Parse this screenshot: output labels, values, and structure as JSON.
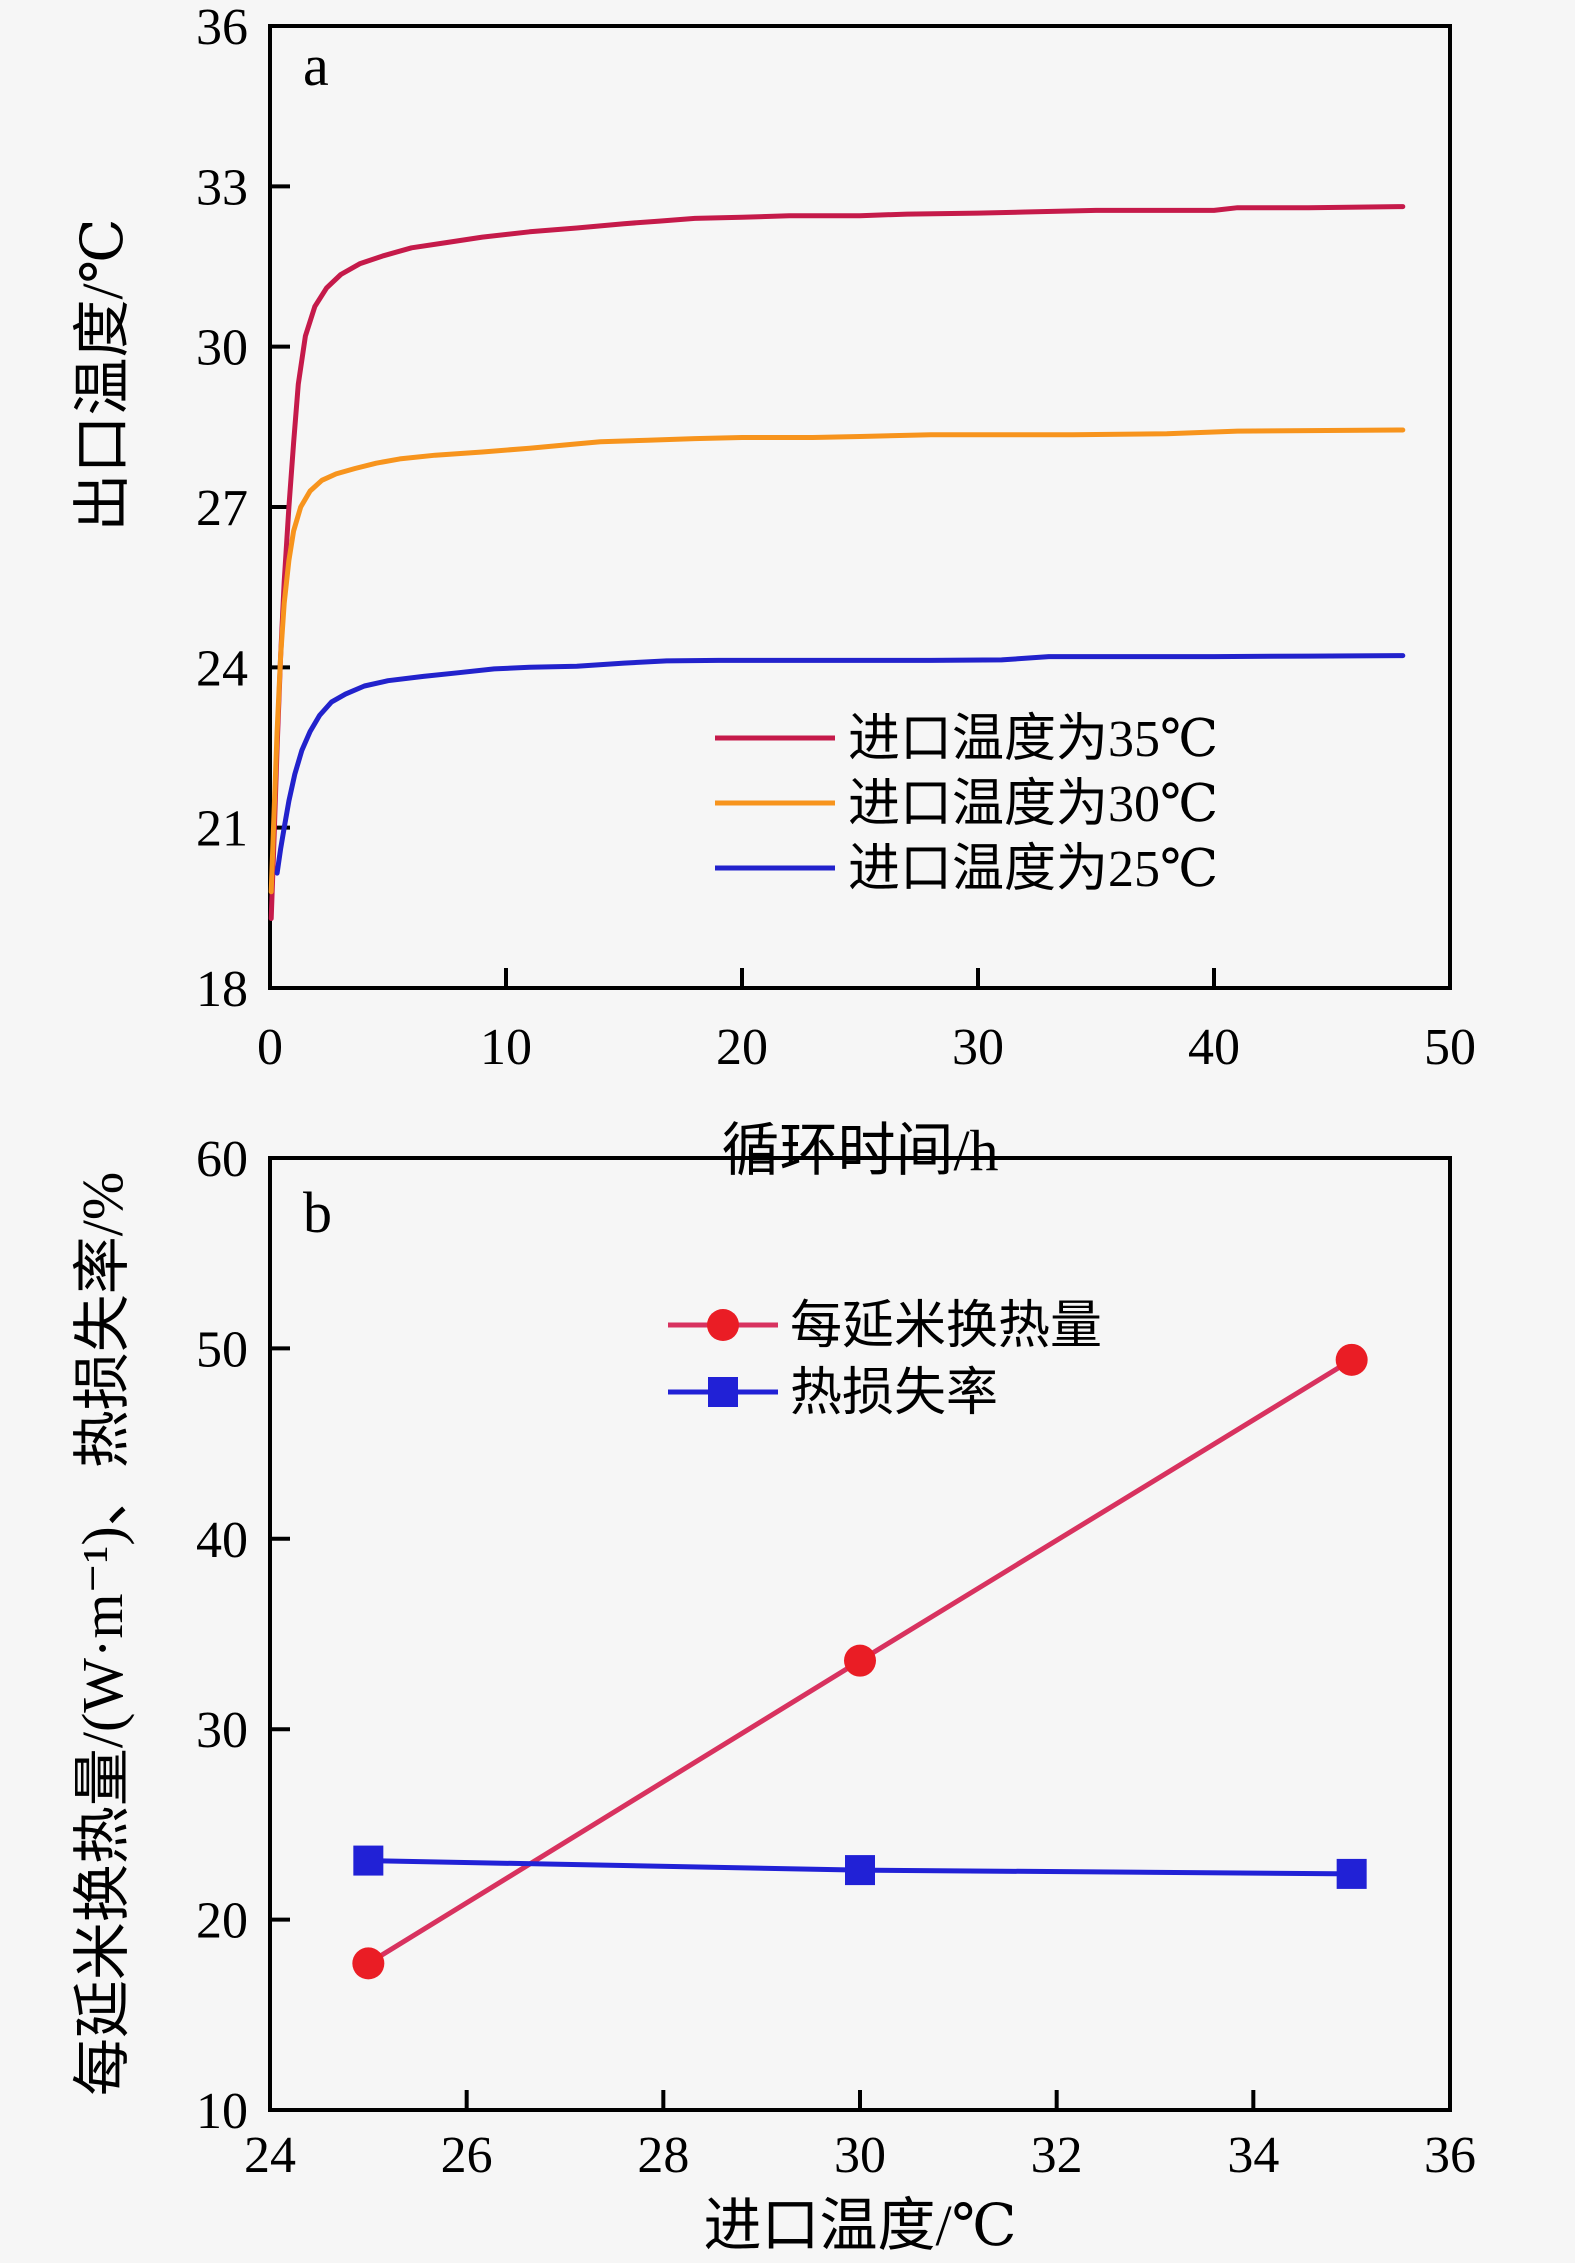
{
  "figure": {
    "background": "#f6f6f6",
    "frame_color": "#000000",
    "panels": [
      "a",
      "b"
    ]
  },
  "chart_data": [
    {
      "id": "a",
      "type": "line",
      "panel_label": "a",
      "xlabel": "循环时间/h",
      "ylabel": "出口温度/℃",
      "xlim": [
        0,
        50
      ],
      "ylim": [
        18,
        36
      ],
      "xticks": [
        0,
        10,
        20,
        30,
        40,
        50
      ],
      "yticks": [
        18,
        21,
        24,
        27,
        30,
        33,
        36
      ],
      "grid": false,
      "legend_position": "inside-right-middle",
      "series": [
        {
          "name": "进口温度为35℃",
          "line_color": "#c51a4a",
          "marker": "none",
          "points": [
            [
              0.05,
              19.3
            ],
            [
              0.15,
              20.5
            ],
            [
              0.3,
              22.5
            ],
            [
              0.45,
              24.2
            ],
            [
              0.6,
              25.6
            ],
            [
              0.8,
              27.0
            ],
            [
              1.0,
              28.2
            ],
            [
              1.2,
              29.3
            ],
            [
              1.5,
              30.2
            ],
            [
              1.9,
              30.75
            ],
            [
              2.4,
              31.1
            ],
            [
              3.0,
              31.35
            ],
            [
              3.8,
              31.55
            ],
            [
              4.8,
              31.7
            ],
            [
              6.0,
              31.85
            ],
            [
              7.5,
              31.95
            ],
            [
              9.0,
              32.05
            ],
            [
              11,
              32.15
            ],
            [
              13,
              32.22
            ],
            [
              15,
              32.3
            ],
            [
              16.5,
              32.35
            ],
            [
              18,
              32.4
            ],
            [
              20,
              32.42
            ],
            [
              22,
              32.45
            ],
            [
              25,
              32.45
            ],
            [
              27,
              32.48
            ],
            [
              30,
              32.5
            ],
            [
              32,
              32.52
            ],
            [
              35,
              32.55
            ],
            [
              38,
              32.55
            ],
            [
              40,
              32.55
            ],
            [
              41,
              32.6
            ],
            [
              44,
              32.6
            ],
            [
              48,
              32.62
            ]
          ]
        },
        {
          "name": "进口温度为30℃",
          "line_color": "#f7941d",
          "marker": "none",
          "points": [
            [
              0.05,
              19.8
            ],
            [
              0.15,
              21.0
            ],
            [
              0.3,
              22.8
            ],
            [
              0.45,
              24.2
            ],
            [
              0.6,
              25.2
            ],
            [
              0.8,
              26.0
            ],
            [
              1.0,
              26.55
            ],
            [
              1.3,
              27.0
            ],
            [
              1.7,
              27.3
            ],
            [
              2.2,
              27.5
            ],
            [
              2.8,
              27.62
            ],
            [
              3.6,
              27.72
            ],
            [
              4.5,
              27.82
            ],
            [
              5.5,
              27.9
            ],
            [
              7,
              27.97
            ],
            [
              9,
              28.03
            ],
            [
              11,
              28.1
            ],
            [
              13,
              28.18
            ],
            [
              14,
              28.22
            ],
            [
              16,
              28.25
            ],
            [
              18,
              28.28
            ],
            [
              20,
              28.3
            ],
            [
              23,
              28.3
            ],
            [
              25,
              28.32
            ],
            [
              28,
              28.35
            ],
            [
              31,
              28.35
            ],
            [
              34,
              28.35
            ],
            [
              38,
              28.37
            ],
            [
              41,
              28.42
            ],
            [
              44,
              28.43
            ],
            [
              48,
              28.44
            ]
          ]
        },
        {
          "name": "进口温度为25℃",
          "line_color": "#2222cc",
          "marker": "none",
          "points": [
            [
              0.3,
              20.15
            ],
            [
              0.45,
              20.6
            ],
            [
              0.6,
              21.0
            ],
            [
              0.8,
              21.5
            ],
            [
              1.05,
              22.0
            ],
            [
              1.35,
              22.45
            ],
            [
              1.7,
              22.8
            ],
            [
              2.1,
              23.1
            ],
            [
              2.6,
              23.35
            ],
            [
              3.2,
              23.5
            ],
            [
              4.0,
              23.65
            ],
            [
              5.0,
              23.75
            ],
            [
              6.5,
              23.83
            ],
            [
              8,
              23.9
            ],
            [
              9.5,
              23.97
            ],
            [
              11,
              24.0
            ],
            [
              13,
              24.02
            ],
            [
              15,
              24.08
            ],
            [
              16.8,
              24.12
            ],
            [
              19,
              24.13
            ],
            [
              22,
              24.13
            ],
            [
              25,
              24.13
            ],
            [
              28,
              24.13
            ],
            [
              31,
              24.14
            ],
            [
              33,
              24.2
            ],
            [
              36,
              24.2
            ],
            [
              40,
              24.2
            ],
            [
              44,
              24.21
            ],
            [
              48,
              24.22
            ]
          ]
        }
      ]
    },
    {
      "id": "b",
      "type": "line",
      "panel_label": "b",
      "xlabel": "进口温度/℃",
      "ylabel": "每延米换热量/(W·m⁻¹)、热损失率/%",
      "xlim": [
        24,
        36
      ],
      "ylim": [
        10,
        60
      ],
      "xticks": [
        24,
        26,
        28,
        30,
        32,
        34,
        36
      ],
      "yticks": [
        10,
        20,
        30,
        40,
        50,
        60
      ],
      "grid": false,
      "legend_position": "inside-top-center",
      "series": [
        {
          "name": "每延米换热量",
          "line_color": "#d8325f",
          "marker": "circle",
          "marker_color": "#ea1d25",
          "points": [
            [
              25,
              17.7
            ],
            [
              30,
              33.6
            ],
            [
              35,
              49.4
            ]
          ]
        },
        {
          "name": "热损失率",
          "line_color": "#2121d6",
          "marker": "square",
          "marker_color": "#2121d6",
          "points": [
            [
              25,
              23.1
            ],
            [
              30,
              22.6
            ],
            [
              35,
              22.4
            ]
          ]
        }
      ]
    }
  ]
}
